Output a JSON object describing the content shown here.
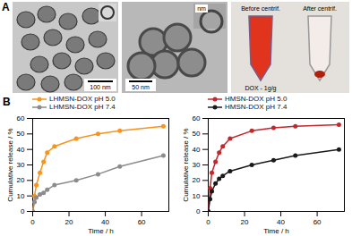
{
  "panel_a": {
    "label": "A",
    "tem_left": {
      "scale_bar": "100 nm"
    },
    "tem_right": {
      "scale_bar": "50 nm",
      "inset": "nm"
    },
    "photo": {
      "before": "Before centrif.",
      "after": "After centrif.",
      "caption": "DOX - 1g/g"
    }
  },
  "panel_b": {
    "label": "B"
  },
  "chart_data": [
    {
      "type": "line",
      "x": [
        0,
        1,
        2,
        4,
        6,
        8,
        12,
        24,
        36,
        48,
        72
      ],
      "x_label": "Time / h",
      "y_label": "Cumulative release / %",
      "xlim": [
        0,
        75
      ],
      "xticks": [
        0,
        20,
        40,
        60
      ],
      "ylim": [
        0,
        60
      ],
      "yticks": [
        0,
        10,
        20,
        30,
        40,
        50,
        60
      ],
      "legend": "top",
      "grid": false,
      "series": [
        {
          "name": "LHMSN-DOX pH 5.0",
          "color": "#f7931e",
          "marker": "circle",
          "values": [
            0,
            10,
            17,
            25,
            32,
            38,
            42,
            47,
            50,
            52,
            55
          ]
        },
        {
          "name": "LHMSN-DOX pH 7.4",
          "color": "#8c8c8c",
          "marker": "circle",
          "values": [
            0,
            6,
            9,
            11,
            12,
            14,
            17,
            20,
            24,
            29,
            36
          ]
        }
      ]
    },
    {
      "type": "line",
      "x": [
        0,
        1,
        2,
        4,
        6,
        8,
        12,
        24,
        36,
        48,
        72
      ],
      "x_label": "Time / h",
      "y_label": "Cumulative release / %",
      "xlim": [
        0,
        75
      ],
      "xticks": [
        0,
        20,
        40,
        60
      ],
      "ylim": [
        0,
        60
      ],
      "yticks": [
        0,
        10,
        20,
        30,
        40,
        50,
        60
      ],
      "legend": "top",
      "grid": false,
      "series": [
        {
          "name": "HMSN-DOX pH 5.0",
          "color": "#c1272d",
          "marker": "circle",
          "values": [
            0,
            15,
            25,
            32,
            38,
            42,
            47,
            52,
            54,
            55,
            56
          ]
        },
        {
          "name": "HMSN-DOX pH 7.4",
          "color": "#1a1a1a",
          "marker": "circle",
          "values": [
            0,
            8,
            13,
            18,
            21,
            23,
            26,
            30,
            33,
            36,
            40
          ]
        }
      ]
    }
  ]
}
